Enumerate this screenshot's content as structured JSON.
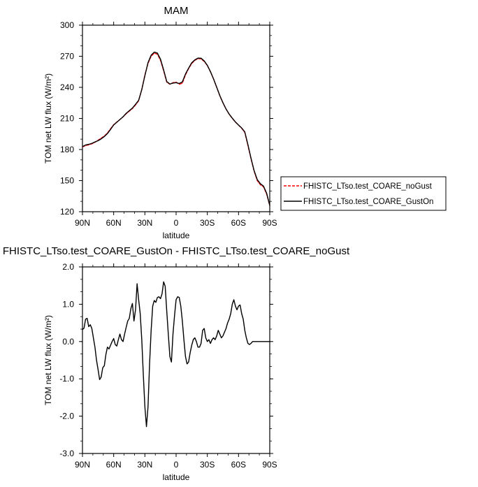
{
  "chart_data": [
    {
      "type": "line",
      "title": "MAM",
      "xlabel": "latitude",
      "ylabel": "TOM net LW flux (W/m²)",
      "x_reversed": true,
      "xlim": [
        90,
        -90
      ],
      "ylim": [
        120,
        300
      ],
      "xticks": [
        90,
        60,
        30,
        0,
        -30,
        -60,
        -90
      ],
      "xtick_labels": [
        "90N",
        "60N",
        "30N",
        "0",
        "30S",
        "60S",
        "90S"
      ],
      "yticks": [
        120,
        150,
        180,
        210,
        240,
        270,
        300
      ],
      "ytick_labels": [
        "120",
        "150",
        "180",
        "210",
        "240",
        "270",
        "300"
      ],
      "grid": false,
      "legend": "outside-right",
      "series": [
        {
          "name": "FHISTC_LTso.test_COARE_noGust",
          "color": "#ff0000",
          "dash": "dashed",
          "x": [
            90,
            87,
            84,
            81,
            78,
            75,
            72,
            69,
            66,
            63,
            60,
            57,
            54,
            51,
            48,
            45,
            42,
            39,
            36,
            33,
            30,
            27,
            24,
            21,
            18,
            15,
            12,
            9,
            6,
            3,
            0,
            -3,
            -6,
            -9,
            -12,
            -15,
            -18,
            -21,
            -24,
            -27,
            -30,
            -33,
            -36,
            -39,
            -42,
            -45,
            -48,
            -51,
            -54,
            -57,
            -60,
            -63,
            -66,
            -69,
            -72,
            -75,
            -78,
            -81,
            -84,
            -87,
            -90
          ],
          "y": [
            182.5,
            183.8,
            184.5,
            185.5,
            187,
            189,
            191,
            193,
            196,
            200,
            204,
            206.5,
            209,
            211.5,
            214.5,
            217,
            219.5,
            223,
            227,
            238,
            252,
            263,
            270,
            273,
            272,
            266,
            256,
            245,
            243,
            244.5,
            245,
            243,
            244,
            252,
            258,
            263,
            266,
            267.7,
            267.5,
            265,
            261,
            255,
            248,
            240,
            232,
            225,
            219,
            214,
            210,
            206.5,
            203.5,
            200.5,
            196.5,
            184,
            171,
            159,
            150,
            146,
            144,
            137,
            126
          ]
        },
        {
          "name": "FHISTC_LTso.test_COARE_GustOn",
          "color": "#000000",
          "dash": "solid",
          "x": [
            90,
            87,
            84,
            81,
            78,
            75,
            72,
            69,
            66,
            63,
            60,
            57,
            54,
            51,
            48,
            45,
            42,
            39,
            36,
            33,
            30,
            27,
            24,
            21,
            18,
            15,
            12,
            9,
            6,
            3,
            0,
            -3,
            -6,
            -9,
            -12,
            -15,
            -18,
            -21,
            -24,
            -27,
            -30,
            -33,
            -36,
            -39,
            -42,
            -45,
            -48,
            -51,
            -54,
            -57,
            -60,
            -63,
            -66,
            -69,
            -72,
            -75,
            -78,
            -81,
            -84,
            -87,
            -90
          ],
          "y": [
            182.8,
            184.4,
            185,
            185.9,
            187.3,
            188.5,
            190.3,
            192.5,
            195.4,
            199.4,
            203.7,
            206.3,
            208.9,
            211.6,
            214.9,
            217.5,
            220,
            223.6,
            227.5,
            237.8,
            251.2,
            263.8,
            271,
            274,
            273.1,
            267.2,
            256.9,
            245.6,
            243.2,
            244.1,
            244.5,
            243.7,
            245.2,
            252.8,
            258.5,
            263.7,
            266.5,
            268.2,
            268.1,
            265.5,
            261.3,
            255.2,
            248.1,
            240.2,
            232.1,
            225.2,
            219.1,
            214.2,
            210.3,
            206.6,
            203.6,
            200.8,
            197.1,
            184.8,
            171.6,
            159.5,
            151,
            147,
            144.7,
            137.9,
            126
          ]
        }
      ]
    },
    {
      "type": "line",
      "title": "FHISTC_LTso.test_COARE_GustOn - FHISTC_LTso.test_COARE_noGust",
      "xlabel": "latitude",
      "ylabel": "TOM net LW flux (W/m²)",
      "x_reversed": true,
      "xlim": [
        90,
        -90
      ],
      "ylim": [
        -3.0,
        2.0
      ],
      "xticks": [
        90,
        60,
        30,
        0,
        -30,
        -60,
        -90
      ],
      "xtick_labels": [
        "90N",
        "60N",
        "30N",
        "0",
        "30S",
        "60S",
        "90S"
      ],
      "yticks": [
        -3.0,
        -2.0,
        -1.0,
        0.0,
        1.0,
        2.0
      ],
      "ytick_labels": [
        "-3.0",
        "-2.0",
        "-1.0",
        "0.0",
        "1.0",
        "2.0"
      ],
      "grid": false,
      "series": [
        {
          "color": "#000000",
          "dash": "solid",
          "x": [
            90,
            88.5,
            87,
            85.5,
            84,
            82.5,
            81,
            79.5,
            78,
            76.5,
            75,
            73.5,
            72,
            70.5,
            69,
            67.5,
            66,
            64.5,
            63,
            61.5,
            60,
            58.5,
            57,
            55.5,
            54,
            52.5,
            51,
            49.5,
            48,
            46.5,
            45,
            43.5,
            42,
            40.5,
            39,
            37.5,
            36,
            34.5,
            33,
            31.5,
            30,
            28.5,
            27,
            25.5,
            24,
            22.5,
            21,
            19.5,
            18,
            16.5,
            15,
            13.5,
            12,
            10.5,
            9,
            7.5,
            6,
            4.5,
            3,
            1.5,
            0,
            -1.5,
            -3,
            -4.5,
            -6,
            -7.5,
            -9,
            -10.5,
            -12,
            -13.5,
            -15,
            -16.5,
            -18,
            -19.5,
            -21,
            -22.5,
            -24,
            -25.5,
            -27,
            -28.5,
            -30,
            -31.5,
            -33,
            -34.5,
            -36,
            -37.5,
            -39,
            -40.5,
            -42,
            -43.5,
            -45,
            -46.5,
            -48,
            -49.5,
            -51,
            -52.5,
            -54,
            -55.5,
            -57,
            -58.5,
            -60,
            -61.5,
            -63,
            -64.5,
            -66,
            -67.5,
            -69,
            -70.5,
            -72,
            -73.5,
            -75,
            -76.5,
            -78,
            -79.5,
            -81,
            -82.5,
            -84,
            -85.5,
            -87,
            -88.5,
            -90
          ],
          "y": [
            0.32,
            0.36,
            0.6,
            0.62,
            0.4,
            0.45,
            0.35,
            0.1,
            -0.15,
            -0.5,
            -0.75,
            -1.02,
            -0.95,
            -0.7,
            -0.65,
            -0.35,
            -0.15,
            -0.2,
            -0.1,
            0.0,
            0.08,
            -0.08,
            -0.12,
            0.05,
            0.2,
            0.05,
            0.0,
            0.2,
            0.38,
            0.55,
            0.62,
            0.88,
            1.02,
            0.55,
            0.85,
            1.55,
            1.12,
            0.75,
            0.05,
            -0.9,
            -1.75,
            -2.28,
            -1.75,
            -0.6,
            0.3,
            0.95,
            1.1,
            1.05,
            1.18,
            1.2,
            1.15,
            1.28,
            1.6,
            1.48,
            0.82,
            0.2,
            -0.4,
            -0.55,
            0.2,
            0.7,
            1.12,
            1.2,
            1.18,
            0.95,
            0.55,
            0.05,
            -0.4,
            -0.6,
            -0.55,
            -0.3,
            -0.1,
            0.05,
            0.1,
            0.0,
            -0.15,
            -0.15,
            -0.05,
            0.3,
            0.35,
            0.1,
            0.0,
            0.05,
            -0.05,
            0.05,
            0.1,
            0.05,
            0.15,
            0.3,
            0.2,
            0.1,
            0.15,
            0.25,
            0.35,
            0.5,
            0.6,
            0.75,
            1.0,
            1.12,
            0.95,
            0.85,
            0.95,
            0.98,
            0.75,
            0.6,
            0.3,
            0.1,
            -0.05,
            -0.08,
            -0.05,
            0.0,
            0.0,
            0.0,
            0.0,
            0.0,
            0.0,
            0.0,
            0.0,
            0.0,
            0.0,
            0.0,
            0.0
          ]
        }
      ]
    }
  ],
  "legend": {
    "entries": [
      {
        "label": "FHISTC_LTso.test_COARE_noGust",
        "color": "#ff0000",
        "dash": "dashed"
      },
      {
        "label": "FHISTC_LTso.test_COARE_GustOn",
        "color": "#000000",
        "dash": "solid"
      }
    ]
  }
}
